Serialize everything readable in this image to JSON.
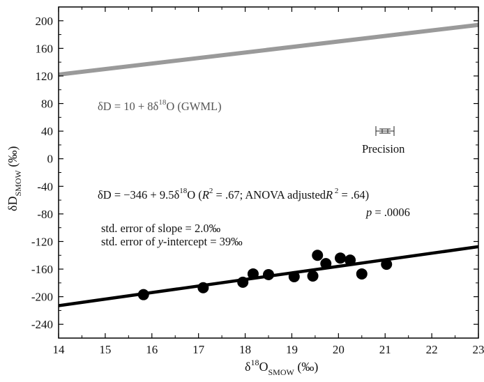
{
  "chart_data": {
    "type": "scatter",
    "xlabel": "δ18O SMOW (‰)",
    "ylabel": "δD SMOW (‰)",
    "xlim": [
      14,
      23
    ],
    "ylim": [
      -260,
      220
    ],
    "x_ticks": [
      "14",
      "15",
      "16",
      "17",
      "18",
      "19",
      "20",
      "21",
      "22",
      "23"
    ],
    "y_ticks": [
      "200",
      "160",
      "120",
      "80",
      "40",
      "0",
      "-40",
      "-80",
      "-120",
      "-160",
      "-200",
      "-240"
    ],
    "grid": false,
    "series": [
      {
        "kind": "points",
        "color": "#000000",
        "x": [
          15.82,
          17.1,
          17.95,
          18.17,
          18.5,
          19.05,
          19.45,
          19.55,
          19.73,
          20.04,
          20.25,
          20.5,
          21.03
        ],
        "y": [
          -197,
          -187,
          -179,
          -167,
          -168,
          -171,
          -170,
          -140,
          -152,
          -144,
          -147,
          -167,
          -153
        ]
      },
      {
        "kind": "line",
        "color": "#000000",
        "x": [
          14,
          23
        ],
        "y": [
          -213,
          -127.5
        ]
      },
      {
        "kind": "line",
        "color": "#9a9a9a",
        "x": [
          14,
          23
        ],
        "y": [
          122,
          194
        ]
      }
    ],
    "annotations": {
      "gwml": {
        "lead": "δD = 10 + 8δ",
        "sup": "18",
        "tail": "O  (GWML)"
      },
      "precision": "Precision",
      "fit": {
        "lead": "δD = −346 + 9.5δ",
        "sup18": "18",
        "mid": "O  (",
        "r": "R",
        "sup2": "2",
        "mid2": " = .67; ANOVA adjusted",
        "r2": "R",
        "sup2b": " 2",
        "tail": " = .64)"
      },
      "p_value": {
        "p": "p",
        "rest": " = .0006"
      },
      "slope_error": "std. error of slope = 2.0‰",
      "intercept_error": {
        "lead": "std. error  of ",
        "y": "y",
        "tail": "-intercept = 39‰"
      }
    }
  },
  "axis_titles": {
    "x": {
      "lead": "δ",
      "sup": "18",
      "main": "O",
      "sub": "SMOW",
      "unit": "  (‰)"
    },
    "y": {
      "main": "δD",
      "sub": "SMOW",
      "unit": "  (‰)"
    }
  }
}
